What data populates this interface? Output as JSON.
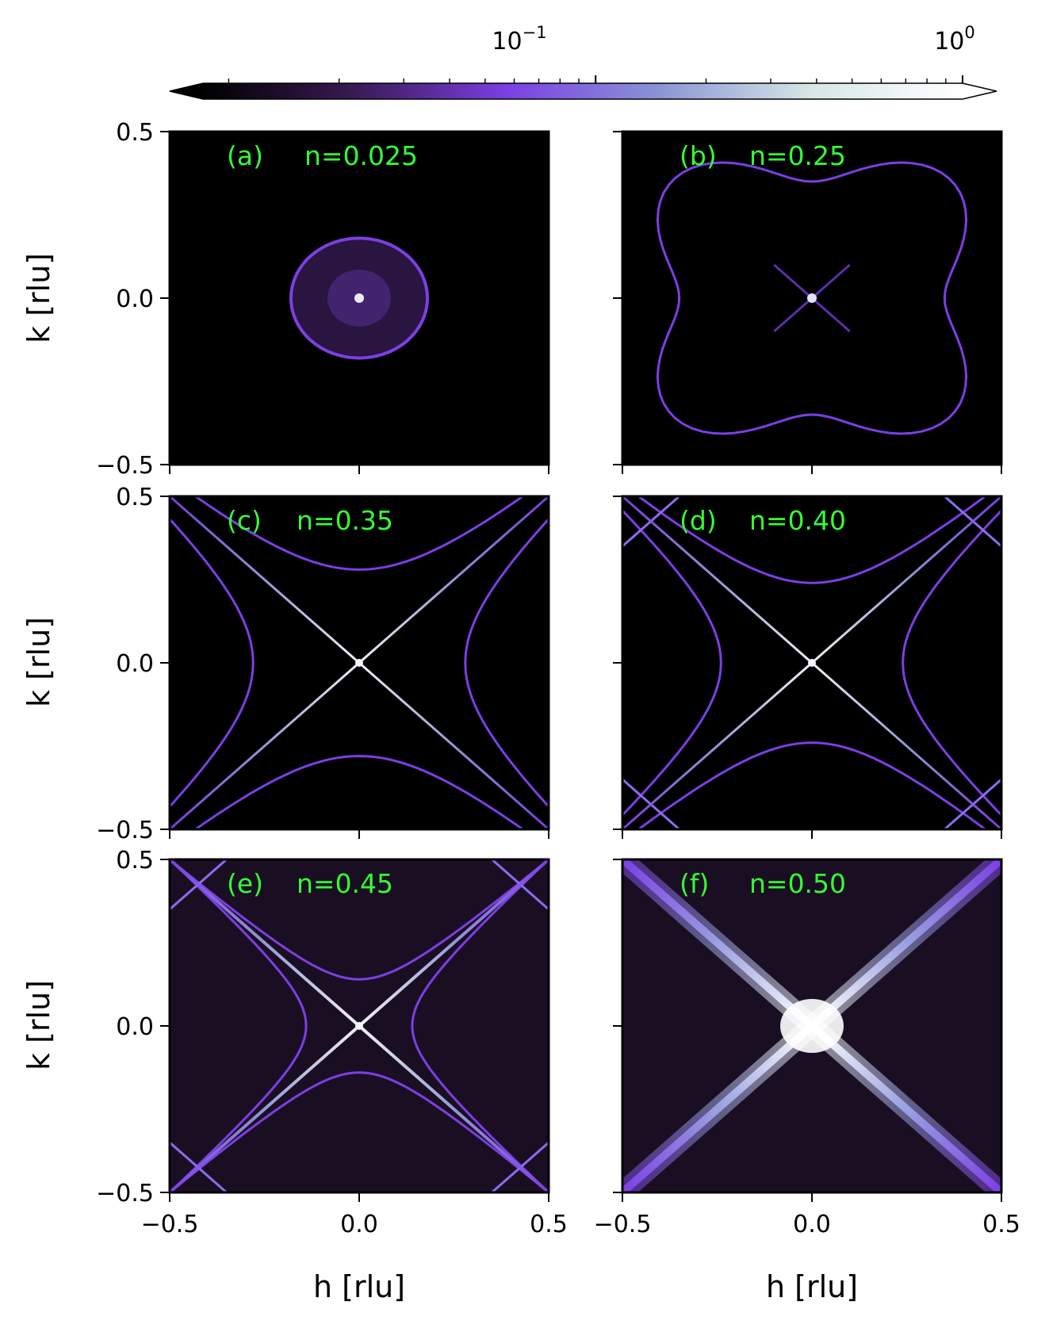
{
  "chart_data": {
    "type": "heatmap",
    "colorbar": {
      "scale": "log",
      "tick_labels": [
        {
          "value": 0.1,
          "base": "10",
          "exponent": "−1"
        },
        {
          "value": 1.0,
          "base": "10",
          "exponent": "0"
        }
      ],
      "extend": "both",
      "colormap": [
        "#000000",
        "#3a1a55",
        "#7b3fe4",
        "#8a94d6",
        "#d8e6e6",
        "#ffffff"
      ]
    },
    "xlabel": "h [rlu]",
    "ylabel": "k [rlu]",
    "xlim": [
      -0.5,
      0.5
    ],
    "ylim": [
      -0.5,
      0.5
    ],
    "xticks": [
      -0.5,
      0.0,
      0.5
    ],
    "xtick_labels": [
      "−0.5",
      "0.0",
      "0.5"
    ],
    "yticks": [
      0.5,
      0.0,
      -0.5
    ],
    "ytick_labels": [
      "0.5",
      "0.0",
      "−0.5"
    ],
    "panels": [
      {
        "label": "(a)",
        "n_text": "n=0.025",
        "n": 0.025
      },
      {
        "label": "(b)",
        "n_text": "n=0.25",
        "n": 0.25
      },
      {
        "label": "(c)",
        "n_text": "n=0.35",
        "n": 0.35
      },
      {
        "label": "(d)",
        "n_text": "n=0.40",
        "n": 0.4
      },
      {
        "label": "(e)",
        "n_text": "n=0.45",
        "n": 0.45
      },
      {
        "label": "(f)",
        "n_text": "n=0.50",
        "n": 0.5
      }
    ]
  }
}
